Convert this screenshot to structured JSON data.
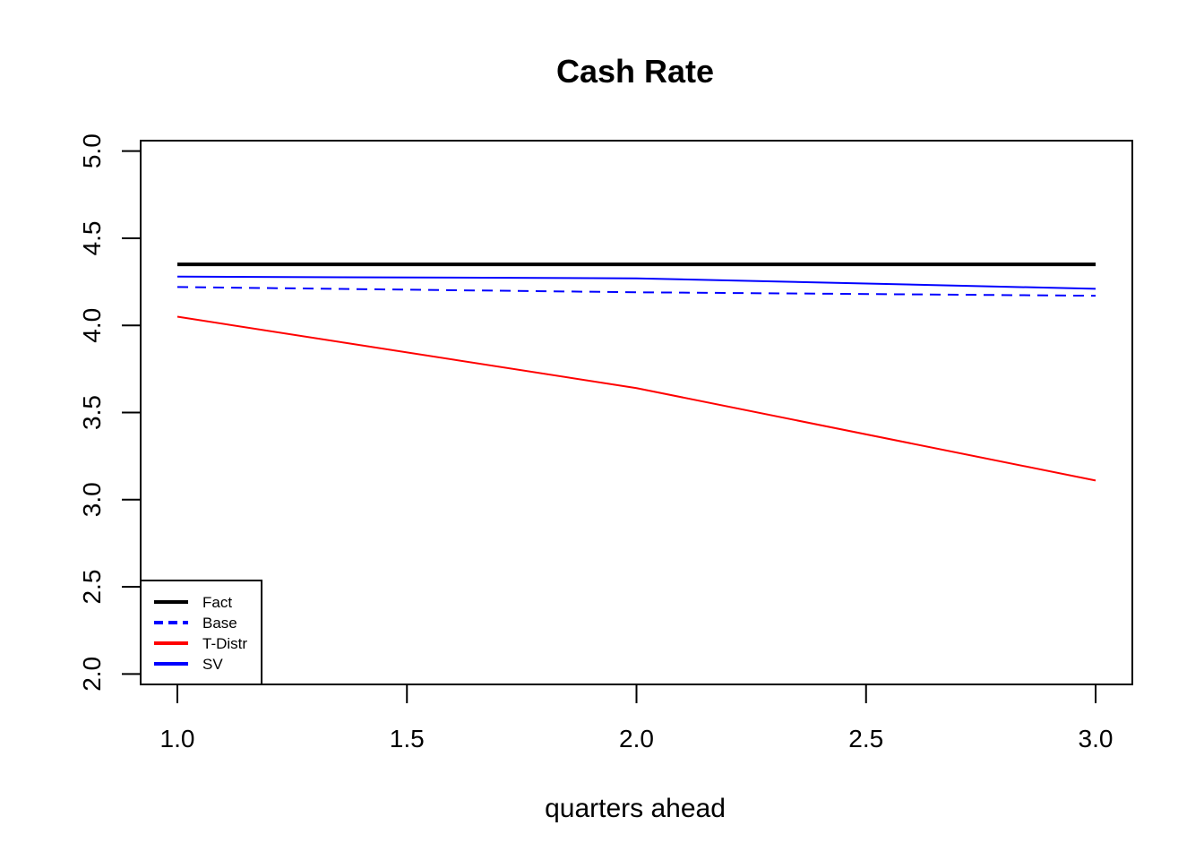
{
  "chart_data": {
    "type": "line",
    "title": "Cash Rate",
    "xlabel": "quarters ahead",
    "ylabel": "",
    "x": [
      1,
      2,
      3
    ],
    "xticks": [
      "1.0",
      "1.5",
      "2.0",
      "2.5",
      "3.0"
    ],
    "yticks": [
      "2.0",
      "2.5",
      "3.0",
      "3.5",
      "4.0",
      "4.5",
      "5.0"
    ],
    "xlim": [
      0.92,
      3.08
    ],
    "ylim": [
      1.94,
      5.06
    ],
    "grid": false,
    "legend_position": "bottom-left",
    "series": [
      {
        "name": "Fact",
        "values": [
          4.35,
          4.35,
          4.35
        ],
        "color": "#000000",
        "style": "solid",
        "weight": "thick"
      },
      {
        "name": "Base",
        "values": [
          4.22,
          4.19,
          4.17
        ],
        "color": "#0000ff",
        "style": "dashed",
        "weight": "normal"
      },
      {
        "name": "T-Distr",
        "values": [
          4.05,
          3.64,
          3.11
        ],
        "color": "#ff0000",
        "style": "solid",
        "weight": "normal"
      },
      {
        "name": "SV",
        "values": [
          4.28,
          4.27,
          4.21
        ],
        "color": "#0000ff",
        "style": "solid",
        "weight": "normal"
      }
    ]
  }
}
